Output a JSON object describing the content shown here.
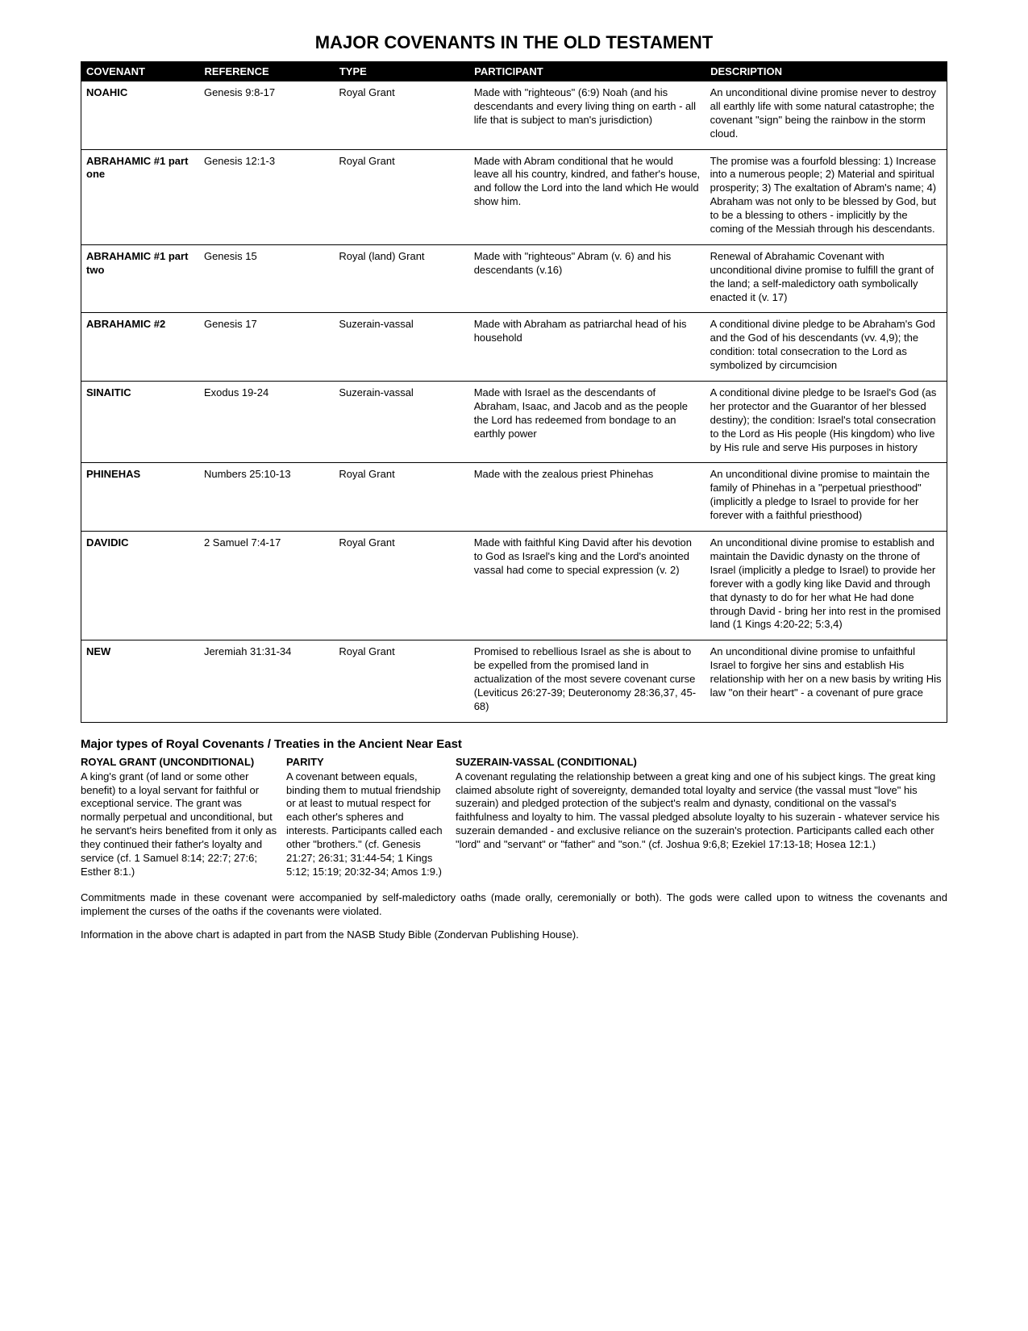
{
  "title": "MAJOR COVENANTS IN THE OLD TESTAMENT",
  "columns": [
    "COVENANT",
    "REFERENCE",
    "TYPE",
    "PARTICIPANT",
    "DESCRIPTION"
  ],
  "rows": [
    {
      "covenant": "NOAHIC",
      "reference": "Genesis 9:8-17",
      "type": "Royal Grant",
      "participant": "Made with \"righteous\" (6:9) Noah (and his descendants and every living thing on earth - all life that is subject to man's jurisdiction)",
      "description": "An unconditional divine promise never to destroy all earthly life with some natural catastrophe; the covenant \"sign\" being the rainbow in the storm cloud."
    },
    {
      "covenant": "ABRAHAMIC #1 part one",
      "reference": "Genesis 12:1-3",
      "type": "Royal Grant",
      "participant": "Made with Abram conditional that he would leave all his country, kindred, and father's house, and follow the Lord into the land which He would show him.",
      "description": "The promise was a fourfold blessing: 1) Increase into a numerous people; 2) Material and spiritual prosperity; 3) The exaltation of Abram's name; 4) Abraham was not only to be blessed by God, but to be a blessing to others - implicitly by the coming of the Messiah through his descendants."
    },
    {
      "covenant": "ABRAHAMIC #1 part two",
      "reference": "Genesis 15",
      "type": "Royal (land) Grant",
      "participant": "Made with \"righteous\" Abram (v. 6) and his descendants (v.16)",
      "description": "Renewal of Abrahamic Covenant with unconditional divine promise to fulfill the grant of the land; a self-maledictory oath symbolically enacted it (v. 17)"
    },
    {
      "covenant": "ABRAHAMIC #2",
      "reference": "Genesis 17",
      "type": "Suzerain-vassal",
      "participant": "Made with Abraham as patriarchal head of his household",
      "description": "A conditional divine pledge to be Abraham's God and the God of his descendants (vv. 4,9); the condition: total consecration to the Lord as symbolized by circumcision"
    },
    {
      "covenant": "SINAITIC",
      "reference": "Exodus 19-24",
      "type": "Suzerain-vassal",
      "participant": "Made with Israel as the descendants of Abraham, Isaac, and Jacob and as the people the Lord has redeemed from bondage to an earthly power",
      "description": "A conditional divine pledge to be Israel's God (as her protector and the Guarantor of her blessed destiny); the condition:  Israel's total consecration to the Lord as His people (His kingdom) who live by His rule and serve His purposes in history"
    },
    {
      "covenant": "PHINEHAS",
      "reference": "Numbers 25:10-13",
      "type": "Royal Grant",
      "participant": "Made with the zealous priest Phinehas",
      "description": "An unconditional divine promise to maintain the family of Phinehas in a \"perpetual priesthood\" (implicitly a pledge to Israel to provide for her forever with a faithful priesthood)"
    },
    {
      "covenant": "DAVIDIC",
      "reference": "2 Samuel 7:4-17",
      "type": "Royal Grant",
      "participant": "Made with faithful King David after his devotion to God as Israel's king and the Lord's anointed vassal had come to special expression (v. 2)",
      "description": "An unconditional divine promise to establish and maintain the Davidic dynasty on the throne of Israel (implicitly a pledge to Israel) to provide her forever with a godly king like David and through that dynasty to do for her what He had done through David - bring her into rest in the promised land (1 Kings 4:20-22; 5:3,4)"
    },
    {
      "covenant": "NEW",
      "reference": "Jeremiah 31:31-34",
      "type": "Royal Grant",
      "participant": "Promised to rebellious Israel as she is about to be expelled from the promised land in actualization of the most severe covenant curse (Leviticus 26:27-39; Deuteronomy 28:36,37, 45-68)",
      "description": "An unconditional divine promise to unfaithful Israel to forgive her sins and establish His relationship with her on a new basis by writing His law \"on their heart\" - a covenant of pure grace"
    }
  ],
  "types_heading": "Major types of Royal Covenants / Treaties in the Ancient Near East",
  "types": {
    "royal": {
      "title": "ROYAL GRANT (UNCONDITIONAL)",
      "body": "A king's grant (of land or some other benefit) to a loyal servant for faithful or exceptional service.  The grant was normally perpetual and unconditional, but he servant's heirs benefited from it only as they continued their father's loyalty and service (cf. 1 Samuel 8:14; 22:7; 27:6; Esther 8:1.)"
    },
    "parity": {
      "title": "PARITY",
      "body": "A covenant between equals, binding them to mutual friendship or at least to mutual respect for each other's spheres and interests.  Participants called each other \"brothers.\" (cf. Genesis 21:27; 26:31; 31:44-54; 1 Kings 5:12; 15:19; 20:32-34; Amos 1:9.)"
    },
    "suzerain": {
      "title": "SUZERAIN-VASSAL (CONDITIONAL)",
      "body": "A covenant regulating the relationship between a great king and one of his subject kings.  The great king claimed absolute right of sovereignty, demanded total loyalty and service (the vassal must \"love\" his suzerain) and pledged protection of the subject's realm and dynasty, conditional on the vassal's faithfulness and loyalty to him.  The vassal pledged absolute loyalty to his suzerain - whatever service his suzerain demanded - and exclusive reliance on the suzerain's protection.  Participants called each other \"lord\" and \"servant\" or \"father\" and \"son.\" (cf. Joshua 9:6,8; Ezekiel 17:13-18; Hosea 12:1.)"
    }
  },
  "footnote": "Commitments made in these covenant were accompanied by self-maledictory oaths (made orally, ceremonially or both).  The gods were called upon to witness the covenants and implement the curses of the oaths if the covenants were violated.",
  "source": "Information in the above chart is adapted in part from the NASB Study Bible (Zondervan Publishing House)."
}
